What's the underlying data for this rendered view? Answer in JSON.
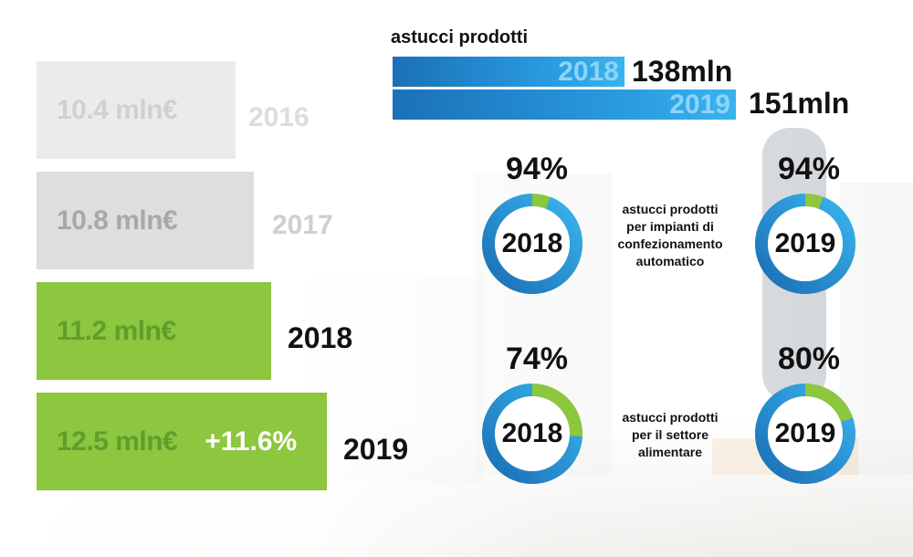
{
  "revenue": {
    "bars": [
      {
        "value_label": "10.4 mln€",
        "year": "2016",
        "value": 10.4
      },
      {
        "value_label": "10.8 mln€",
        "year": "2017",
        "value": 10.8
      },
      {
        "value_label": "11.2 mln€",
        "year": "2018",
        "value": 11.2
      },
      {
        "value_label": "12.5 mln€",
        "year": "2019",
        "value": 12.5,
        "growth": "+11.6%"
      }
    ]
  },
  "produced": {
    "title": "astucci prodotti",
    "rows": [
      {
        "year": "2018",
        "value_label": "138mln",
        "value": 138
      },
      {
        "year": "2019",
        "value_label": "151mln",
        "value": 151
      }
    ]
  },
  "donuts": [
    {
      "pct_label": "94%",
      "pct": 94,
      "year": "2018"
    },
    {
      "pct_label": "94%",
      "pct": 94,
      "year": "2019"
    },
    {
      "pct_label": "74%",
      "pct": 74,
      "year": "2018"
    },
    {
      "pct_label": "80%",
      "pct": 80,
      "year": "2019"
    }
  ],
  "captions": {
    "automatic": [
      "astucci prodotti",
      "per impianti di",
      "confezionamento",
      "automatico"
    ],
    "food": [
      "astucci prodotti",
      "per il settore",
      "alimentare"
    ]
  },
  "colors": {
    "grey_light": "#ebebeb",
    "grey_mid": "#dcdcdc",
    "green": "#8dc63f",
    "green_dark_text": "#56902a",
    "blue": "#2a8fd8",
    "blue_dark": "#1b6eb5",
    "donut_green": "#8dc63f"
  },
  "chart_data": [
    {
      "type": "bar",
      "categories": [
        "2016",
        "2017",
        "2018",
        "2019"
      ],
      "values": [
        10.4,
        10.8,
        11.2,
        12.5
      ],
      "annotations": [
        "+11.6%"
      ]
    },
    {
      "type": "bar",
      "title": "astucci prodotti",
      "categories": [
        "2018",
        "2019"
      ],
      "values": [
        138,
        151
      ]
    },
    {
      "type": "pie",
      "categories": [
        "2018",
        "2019",
        "2018",
        "2019"
      ],
      "values": [
        94,
        94,
        74,
        80
      ]
    }
  ]
}
